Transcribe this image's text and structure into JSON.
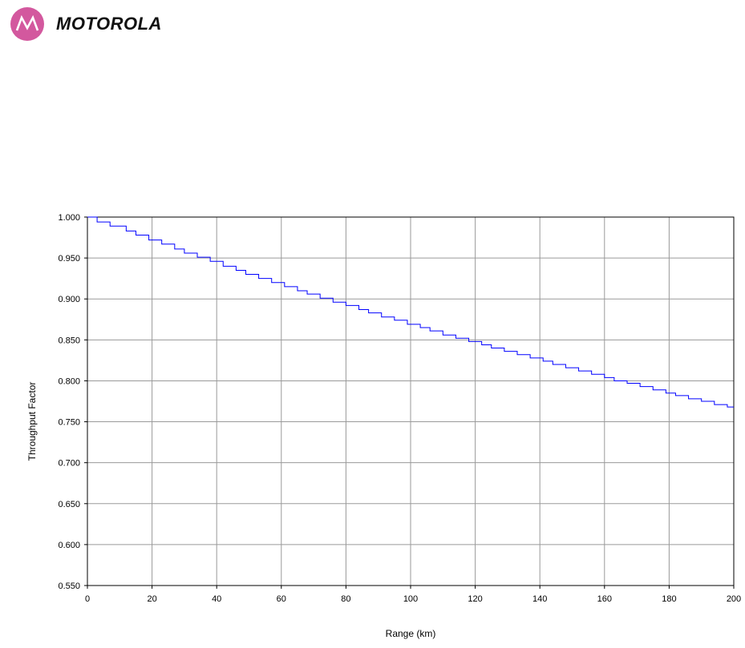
{
  "header": {
    "brand_name": "MOTOROLA",
    "logo_icon": "motorola-batwing-icon",
    "logo_color": "#d3589e"
  },
  "chart_data": {
    "type": "line",
    "title": "",
    "xlabel": "Range (km)",
    "ylabel": "Throughput Factor",
    "xlim": [
      0,
      200
    ],
    "ylim": [
      0.55,
      1.0
    ],
    "x_ticks": [
      0,
      20,
      40,
      60,
      80,
      100,
      120,
      140,
      160,
      180,
      200
    ],
    "x_tick_labels": [
      "0",
      "20",
      "40",
      "60",
      "80",
      "100",
      "120",
      "140",
      "160",
      "180",
      "200"
    ],
    "y_ticks": [
      0.55,
      0.6,
      0.65,
      0.7,
      0.75,
      0.8,
      0.85,
      0.9,
      0.95,
      1.0
    ],
    "y_tick_labels": [
      "0.550",
      "0.600",
      "0.650",
      "0.700",
      "0.750",
      "0.800",
      "0.850",
      "0.900",
      "0.950",
      "1.000"
    ],
    "grid": true,
    "legend": "none",
    "line_style": "step",
    "series": [
      {
        "color": "#0000ff",
        "x": [
          0,
          3,
          7,
          12,
          15,
          19,
          23,
          27,
          30,
          34,
          38,
          42,
          46,
          49,
          53,
          57,
          61,
          65,
          68,
          72,
          76,
          80,
          84,
          87,
          91,
          95,
          99,
          103,
          106,
          110,
          114,
          118,
          122,
          125,
          129,
          133,
          137,
          141,
          144,
          148,
          152,
          156,
          160,
          163,
          167,
          171,
          175,
          179,
          182,
          186,
          190,
          194,
          198,
          200
        ],
        "y": [
          1.0,
          0.994,
          0.989,
          0.983,
          0.978,
          0.972,
          0.967,
          0.961,
          0.956,
          0.951,
          0.946,
          0.94,
          0.935,
          0.93,
          0.925,
          0.92,
          0.915,
          0.91,
          0.906,
          0.901,
          0.896,
          0.892,
          0.887,
          0.883,
          0.878,
          0.874,
          0.869,
          0.865,
          0.861,
          0.856,
          0.852,
          0.848,
          0.844,
          0.84,
          0.836,
          0.832,
          0.828,
          0.824,
          0.82,
          0.816,
          0.812,
          0.808,
          0.804,
          0.8,
          0.797,
          0.793,
          0.789,
          0.785,
          0.782,
          0.778,
          0.775,
          0.771,
          0.768,
          0.768
        ]
      }
    ]
  }
}
